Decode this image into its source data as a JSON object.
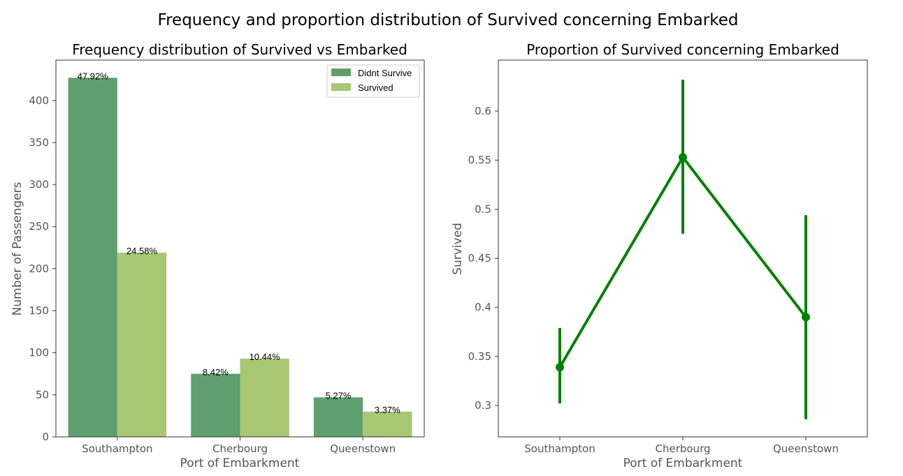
{
  "figure": {
    "suptitle": "Frequency and proportion distribution of Survived concerning Embarked"
  },
  "chart_data": [
    {
      "type": "bar",
      "title": "Frequency distribution of Survived vs Embarked",
      "xlabel": "Port of Embarkment",
      "ylabel": "Number of Passengers",
      "categories": [
        "Southampton",
        "Cherbourg",
        "Queenstown"
      ],
      "ylim": [
        0,
        448
      ],
      "yticks": [
        0,
        50,
        100,
        150,
        200,
        250,
        300,
        350,
        400
      ],
      "legend": "top-right",
      "grid": false,
      "series": [
        {
          "name": "Didnt Survive",
          "color": "#5f9e6e",
          "values": [
            427,
            75,
            47
          ],
          "labels": [
            "47.92%",
            "8.42%",
            "5.27%"
          ]
        },
        {
          "name": "Survived",
          "color": "#a7c773",
          "values": [
            219,
            93,
            30
          ],
          "labels": [
            "24.58%",
            "10.44%",
            "3.37%"
          ]
        }
      ]
    },
    {
      "type": "line",
      "title": "Proportion of Survived concerning Embarked",
      "xlabel": "Port of Embarkment",
      "ylabel": "Survived",
      "categories": [
        "Southampton",
        "Cherbourg",
        "Queenstown"
      ],
      "ylim": [
        0.268,
        0.652
      ],
      "yticks": [
        0.3,
        0.35,
        0.4,
        0.45,
        0.5,
        0.55,
        0.6
      ],
      "ytick_labels": [
        "0.3",
        "0.35",
        "0.4",
        "0.45",
        "0.5",
        "0.55",
        "0.6"
      ],
      "color": "#008000",
      "grid": false,
      "values": [
        0.339,
        0.553,
        0.39
      ],
      "ci": [
        [
          0.302,
          0.379
        ],
        [
          0.475,
          0.632
        ],
        [
          0.286,
          0.494
        ]
      ]
    }
  ]
}
